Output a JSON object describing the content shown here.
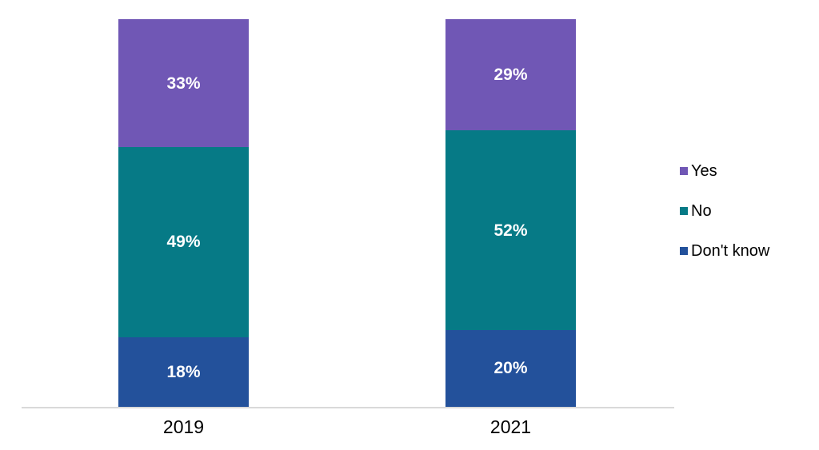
{
  "chart_data": {
    "type": "bar",
    "variant": "stacked-column",
    "title": "",
    "categories": [
      "2019",
      "2021"
    ],
    "series": [
      {
        "name": "Yes",
        "color": "#7057b5",
        "values": [
          33,
          29
        ],
        "labels": [
          "33%",
          "29%"
        ]
      },
      {
        "name": "No",
        "color": "#067a86",
        "values": [
          49,
          52
        ],
        "labels": [
          "49%",
          "52%"
        ]
      },
      {
        "name": "Don't know",
        "color": "#23519b",
        "values": [
          18,
          20
        ],
        "labels": [
          "18%",
          "20%"
        ]
      }
    ],
    "stack_order_top_to_bottom": [
      "Yes",
      "No",
      "Don't know"
    ],
    "ylim": [
      0,
      100
    ],
    "value_format": "percent",
    "grid": false,
    "legend_position": "right",
    "data_labels": true,
    "data_label_color": "#ffffff",
    "axis_text_color": "#000000",
    "axis_line_color": "#d9d9d9"
  }
}
